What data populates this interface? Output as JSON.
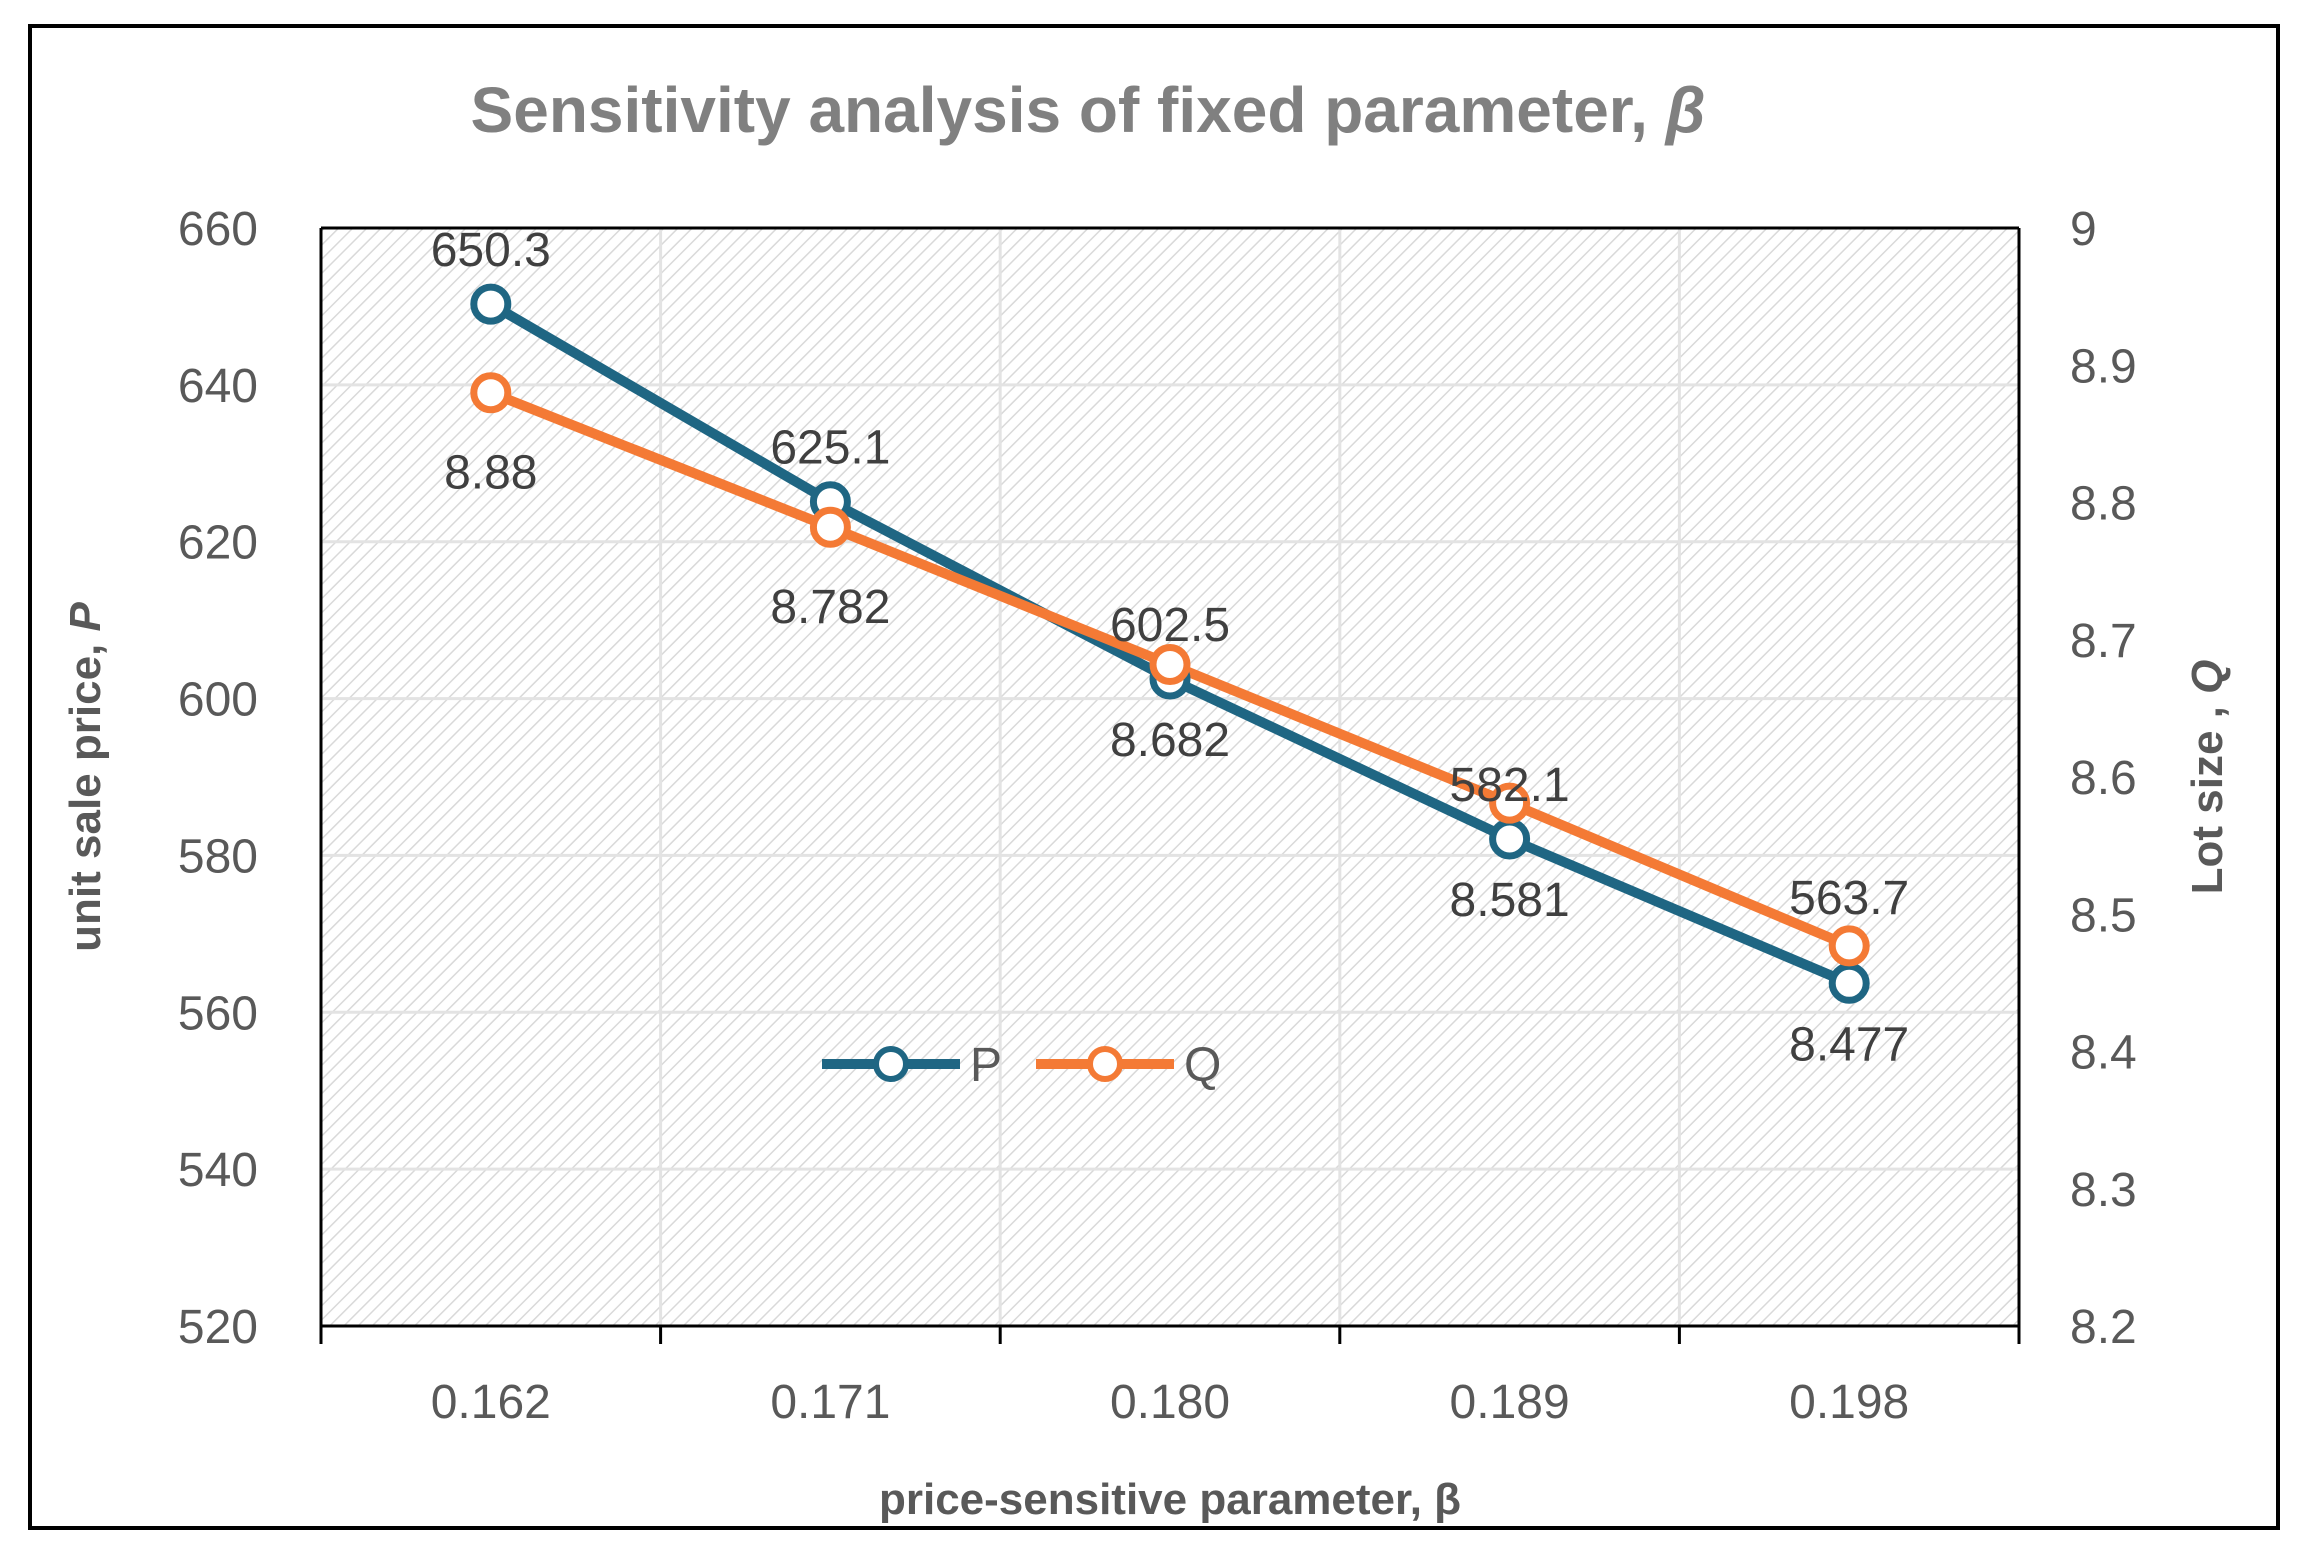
{
  "chart_data": {
    "type": "line",
    "title": "Sensitivity analysis of fixed parameter, ",
    "title_symbol": "β",
    "categories": [
      "0.162",
      "0.171",
      "0.180",
      "0.189",
      "0.198"
    ],
    "xlabel": "price-sensitive parameter, β",
    "ylabel": "unit sale price, ",
    "ylabel_symbol": "P",
    "y2label": "Lot size , ",
    "y2label_symbol": "Q",
    "ylim": [
      520,
      660
    ],
    "yticks": [
      "660",
      "640",
      "620",
      "600",
      "580",
      "560",
      "540",
      "520"
    ],
    "y2lim": [
      8.2,
      9.0
    ],
    "y2ticks": [
      "9",
      "8.9",
      "8.8",
      "8.7",
      "8.6",
      "8.5",
      "8.4",
      "8.3",
      "8.2"
    ],
    "series": [
      {
        "name": "P",
        "axis": "left",
        "color": "#1F6683",
        "values": [
          650.3,
          625.1,
          602.5,
          582.1,
          563.7
        ],
        "labels": [
          "650.3",
          "625.1",
          "602.5",
          "582.1",
          "563.7"
        ]
      },
      {
        "name": "Q",
        "axis": "right",
        "color": "#F47A35",
        "values": [
          8.88,
          8.782,
          8.682,
          8.581,
          8.477
        ],
        "labels": [
          "8.88",
          "8.782",
          "8.682",
          "8.581",
          "8.477"
        ]
      }
    ],
    "legend": [
      "P",
      "Q"
    ],
    "legend_position": "center-bottom-inside",
    "grid": true
  }
}
